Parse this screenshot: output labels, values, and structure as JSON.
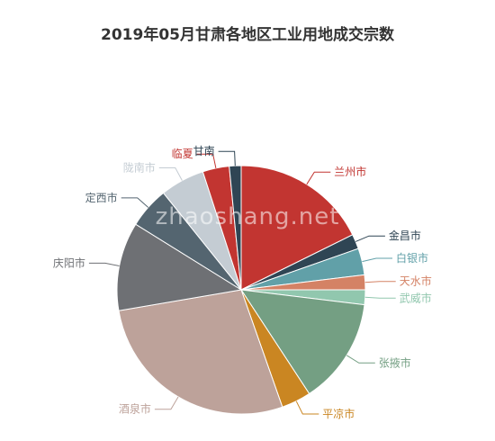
{
  "chart_data": {
    "type": "pie",
    "title": "2019年05月甘肃各地区工业用地成交宗数",
    "watermark": "zhaoshang.net",
    "legend": "none",
    "slices": [
      {
        "label": "兰州市",
        "value": 23,
        "color": "#c23531"
      },
      {
        "label": "金昌市",
        "value": 2.5,
        "color": "#2f4554"
      },
      {
        "label": "白银市",
        "value": 4.5,
        "color": "#61a0a8"
      },
      {
        "label": "天水市",
        "value": 2.5,
        "color": "#d48265"
      },
      {
        "label": "武威市",
        "value": 2.5,
        "color": "#91c7ae"
      },
      {
        "label": "张掖市",
        "value": 18,
        "color": "#749f83"
      },
      {
        "label": "平凉市",
        "value": 5,
        "color": "#ca8622"
      },
      {
        "label": "酒泉市",
        "value": 36,
        "color": "#bda29a"
      },
      {
        "label": "庆阳市",
        "value": 15,
        "color": "#6e7074"
      },
      {
        "label": "定西市",
        "value": 7,
        "color": "#546570"
      },
      {
        "label": "陇南市",
        "value": 7.5,
        "color": "#c4ccd3"
      },
      {
        "label": "临夏",
        "value": 4.5,
        "color": "#c23531"
      },
      {
        "label": "甘南",
        "value": 2,
        "color": "#2f4554"
      }
    ]
  }
}
